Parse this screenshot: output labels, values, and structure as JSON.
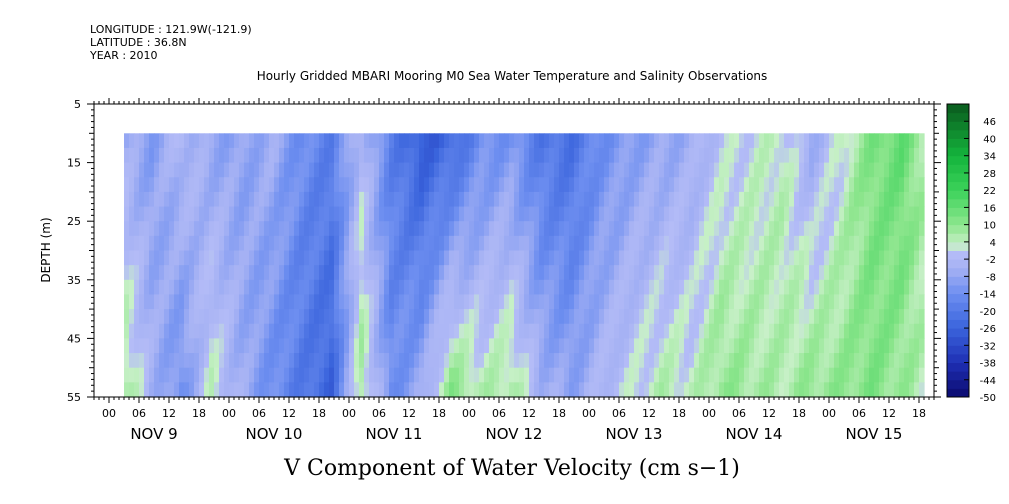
{
  "header": {
    "longitude": "LONGITUDE : 121.9W(-121.9)",
    "latitude": "LATITUDE : 36.8N",
    "year": "YEAR : 2010"
  },
  "chart_data": {
    "type": "heatmap",
    "title": "Hourly Gridded MBARI Mooring M0 Sea Water Temperature and Salinity Observations",
    "xlabel": "",
    "ylabel": "DEPTH (m)",
    "colorbar_label": "V Component of Water Velocity (cm s−1)",
    "y_ticks": [
      5,
      15,
      25,
      35,
      45,
      55
    ],
    "ylim": [
      5,
      55
    ],
    "y_inverted": true,
    "hour_tick_labels": [
      "00",
      "06",
      "12",
      "18"
    ],
    "day_labels": [
      "NOV 9",
      "NOV 10",
      "NOV 11",
      "NOV 12",
      "NOV 13",
      "NOV 14",
      "NOV 15"
    ],
    "x_start_hour": -3,
    "x_end_hour": 165,
    "data_start_hour": 3,
    "data_end_hour": 163,
    "data_depth_range": [
      10,
      55
    ],
    "colorbar_ticks": [
      46,
      40,
      34,
      28,
      22,
      16,
      10,
      4,
      -2,
      -8,
      -14,
      -20,
      -26,
      -32,
      -38,
      -44,
      -50
    ],
    "colorbar_range": [
      -50,
      52
    ],
    "colorbar_step": 3,
    "velocity_profile": {
      "hours": [
        3,
        8,
        14,
        20,
        26,
        32,
        38,
        44,
        50,
        56,
        62,
        68,
        74,
        80,
        86,
        92,
        98,
        104,
        110,
        116,
        122,
        128,
        134,
        140,
        146,
        152,
        158,
        163
      ],
      "surface": [
        -6,
        -10,
        -2,
        -8,
        -9,
        -6,
        -14,
        -18,
        -2,
        -18,
        -28,
        -24,
        -14,
        -12,
        -20,
        -22,
        -14,
        -10,
        -8,
        -6,
        0,
        2,
        4,
        -6,
        2,
        12,
        16,
        6
      ],
      "bottom": [
        8,
        -4,
        -14,
        4,
        -6,
        -14,
        -20,
        -26,
        8,
        -14,
        -6,
        12,
        6,
        8,
        -4,
        -8,
        -2,
        2,
        6,
        4,
        10,
        8,
        6,
        10,
        10,
        12,
        8,
        4
      ]
    }
  }
}
